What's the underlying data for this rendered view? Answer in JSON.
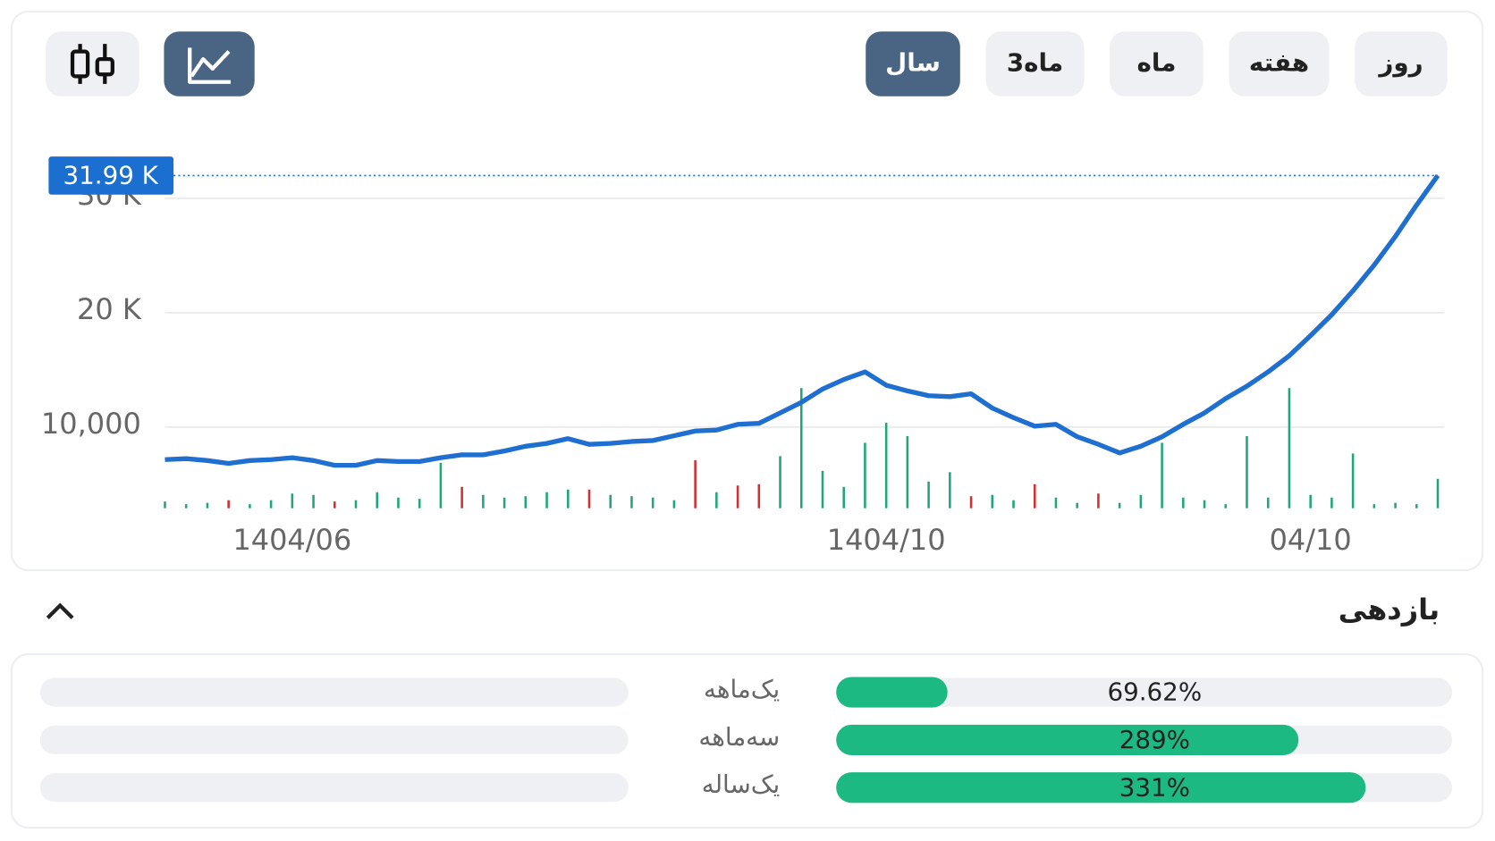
{
  "tabs": [
    "روز",
    "هفته",
    "ماه",
    "3ماه",
    "سال"
  ],
  "active_tab": 4,
  "section_title": "بازدهی",
  "chart_data": [
    {
      "type": "line",
      "categories": [
        null,
        null,
        null,
        null,
        null,
        null,
        "1404/06",
        null,
        null,
        null,
        null,
        null,
        null,
        null,
        null,
        null,
        null,
        null,
        null,
        null,
        null,
        null,
        null,
        null,
        null,
        null,
        null,
        null,
        null,
        null,
        null,
        null,
        null,
        null,
        "1404/10",
        null,
        null,
        null,
        null,
        null,
        null,
        null,
        null,
        null,
        null,
        null,
        null,
        null,
        null,
        null,
        null,
        null,
        null,
        null,
        "04/10",
        null,
        null,
        null,
        null,
        null,
        null
      ],
      "series": [
        {
          "color": "#1f6fd1",
          "values": [
            7170,
            7250,
            7080,
            6830,
            7080,
            7170,
            7330,
            7080,
            6670,
            6670,
            7080,
            7000,
            7000,
            7330,
            7580,
            7580,
            7920,
            8330,
            8580,
            9000,
            8500,
            8580,
            8750,
            8830,
            9250,
            9670,
            9750,
            10250,
            10330,
            11250,
            12170,
            13330,
            14170,
            14830,
            13670,
            13170,
            12750,
            12670,
            12920,
            11670,
            10830,
            10080,
            10250,
            9170,
            8500,
            7750,
            8330,
            9170,
            10250,
            11250,
            12500,
            13580,
            14830,
            16250,
            18000,
            19830,
            21920,
            24170,
            26670,
            29420,
            31990
          ]
        },
        {
          "type": "bar",
          "axis": "y2",
          "color": "#1fa67a",
          "values": [
            5,
            3,
            4,
            null,
            3,
            6,
            11,
            10,
            null,
            6,
            12,
            8,
            7,
            34,
            null,
            10,
            8,
            9,
            12,
            14,
            null,
            10,
            9,
            8,
            6,
            null,
            12,
            null,
            null,
            39,
            90,
            28,
            16,
            49,
            64,
            54,
            20,
            27,
            null,
            10,
            6,
            null,
            8,
            4,
            null,
            4,
            10,
            49,
            8,
            6,
            3,
            54,
            8,
            90,
            10,
            8,
            41,
            3,
            4,
            3,
            22
          ]
        },
        {
          "type": "bar",
          "axis": "y2",
          "color": "#d32f2f",
          "values": [
            null,
            null,
            null,
            6,
            null,
            null,
            null,
            null,
            5,
            null,
            null,
            null,
            null,
            null,
            16,
            null,
            null,
            null,
            null,
            null,
            14,
            null,
            null,
            null,
            null,
            36,
            null,
            17,
            18,
            null,
            null,
            null,
            null,
            null,
            null,
            null,
            null,
            null,
            9,
            null,
            null,
            18,
            null,
            null,
            11,
            null,
            null,
            null,
            null,
            null,
            null,
            null,
            null,
            null,
            null,
            null,
            null,
            null,
            null,
            null,
            null
          ]
        }
      ],
      "ylim": [
        2500,
        35000
      ],
      "yticks": [
        {
          "value": 10000,
          "label": "10,000"
        },
        {
          "value": 20000,
          "label": "20 K"
        },
        {
          "value": 30000,
          "label": "30 K"
        }
      ],
      "y2lim": [
        0,
        100
      ],
      "grid": true,
      "last_price": {
        "value": 31990,
        "label": "31.99 K"
      }
    },
    {
      "type": "bar",
      "orientation": "horizontal",
      "categories": [
        "یک‌ماهه",
        "سه‌ماهه",
        "یک‌ساله"
      ],
      "values": [
        69.62,
        289,
        331
      ],
      "value_labels": [
        "69.62%",
        "289%",
        "331%"
      ],
      "xlim": [
        0,
        385
      ],
      "color": "#1cba82"
    }
  ]
}
